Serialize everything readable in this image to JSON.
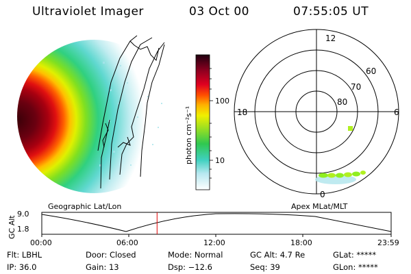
{
  "header": {
    "title": "Ultraviolet Imager",
    "date": "03 Oct 00",
    "time": "07:55:05 UT"
  },
  "colorbar": {
    "unit": "photon cm⁻²s⁻¹",
    "ticks": [
      "100",
      "10"
    ]
  },
  "polar_plot": {
    "mlt_labels": [
      "12",
      "18",
      "6",
      "0"
    ],
    "lat_labels": [
      "60",
      "70",
      "80"
    ]
  },
  "timeline": {
    "left_label": "Geographic Lat/Lon",
    "right_label": "Apex MLat/MLT",
    "ylabel": "GC Alt",
    "yticks": [
      "9.0",
      "1.8"
    ],
    "xticks": [
      "00:00",
      "06:00",
      "12:00",
      "18:00",
      "23:59"
    ],
    "marker_fraction": 0.33,
    "marker_color": "#e00000"
  },
  "status": {
    "flt": "Flt: LBHL",
    "ip": "IP: 36.0",
    "door": "Door: Closed",
    "gain": "Gain: 13",
    "mode": "Mode: Normal",
    "dsp": "Dsp:   −12.6",
    "gc_alt": "GC Alt: 4.7 Re",
    "seq": "Seq: 39",
    "glat": "GLat: *****",
    "glon": "GLon: *****"
  }
}
